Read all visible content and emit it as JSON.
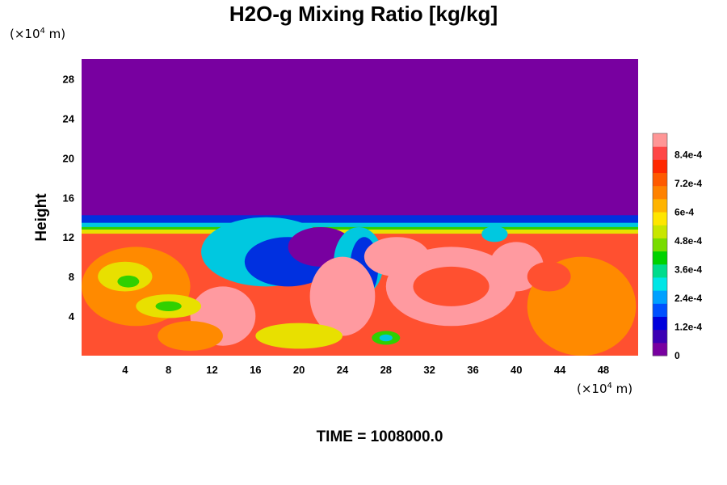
{
  "chart_data": {
    "type": "heatmap",
    "title": "H2O-g Mixing Ratio [kg/kg]",
    "ylabel": "Height",
    "xlabel": "",
    "x_unit": {
      "prefix": "(×10",
      "exp": "4",
      "suffix": " m)"
    },
    "y_unit": {
      "prefix": "(×10",
      "exp": "4",
      "suffix": " m)"
    },
    "x_ticks": [
      4,
      8,
      12,
      16,
      20,
      24,
      28,
      32,
      36,
      40,
      44,
      48
    ],
    "y_ticks": [
      4,
      8,
      12,
      16,
      20,
      24,
      28
    ],
    "xlim": [
      0,
      51.2
    ],
    "ylim": [
      0,
      30
    ],
    "colorbar": {
      "labels": [
        "0",
        "1.2e-4",
        "2.4e-4",
        "3.6e-4",
        "4.8e-4",
        "6e-4",
        "7.2e-4",
        "8.4e-4"
      ],
      "label_values": [
        0,
        0.00012,
        0.00024,
        0.00036,
        0.00048,
        0.0006,
        0.00072,
        0.00084
      ],
      "range": [
        0,
        0.00093
      ],
      "colors": [
        "#7800a0",
        "#3c00b4",
        "#0000dc",
        "#0050ff",
        "#00a0ff",
        "#00e6e6",
        "#00dc8c",
        "#00d200",
        "#78dc00",
        "#c8e600",
        "#ffe600",
        "#ffb400",
        "#ff8200",
        "#ff5a00",
        "#ff2800",
        "#ff4646",
        "#ff9696"
      ]
    },
    "fields": {
      "moist_top_height": 12.5,
      "cloud_top_height": 14.2,
      "dry_color": "#7800a0",
      "moist_base_color": "#ff5030",
      "pink_color": "#ff9aa0",
      "orange_color": "#ff8a00",
      "yellow_color": "#e8e000",
      "green_color": "#30d000",
      "cyan_color": "#00c8e0",
      "blue_color": "#0030e0"
    },
    "time_label": "TIME = 1008000.0"
  }
}
